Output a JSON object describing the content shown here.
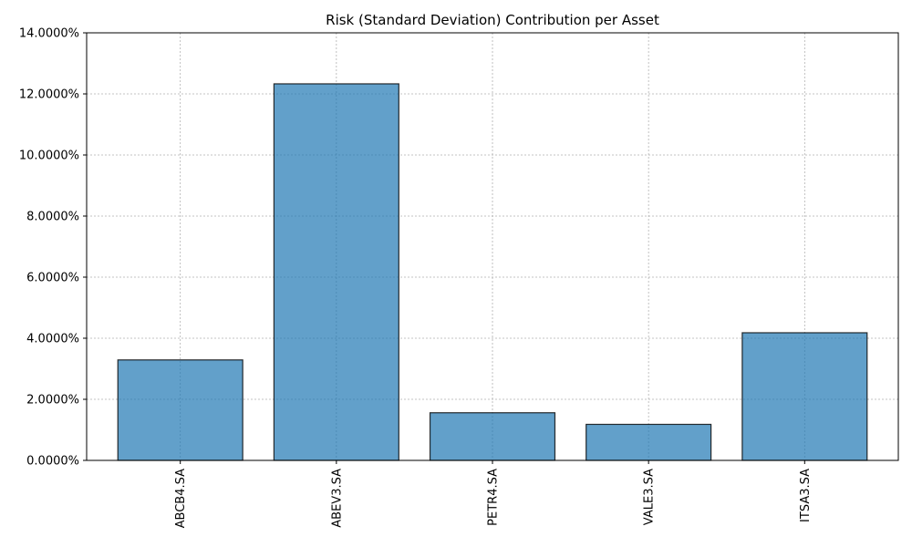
{
  "chart_data": {
    "type": "bar",
    "title": "Risk (Standard Deviation) Contribution per Asset",
    "xlabel": "",
    "ylabel": "",
    "categories": [
      "ABCB4.SA",
      "ABEV3.SA",
      "PETR4.SA",
      "VALE3.SA",
      "ITSA3.SA"
    ],
    "values": [
      3.29,
      12.33,
      1.56,
      1.18,
      4.18
    ],
    "value_unit": "%",
    "ylim": [
      0,
      14
    ],
    "yticks": [
      0,
      2,
      4,
      6,
      8,
      10,
      12,
      14
    ],
    "ytick_labels": [
      "0.0000%",
      "2.0000%",
      "4.0000%",
      "6.0000%",
      "8.0000%",
      "10.0000%",
      "12.0000%",
      "14.0000%"
    ],
    "grid": true,
    "xtick_rotation": "vertical",
    "bar_color": "#1f77b4"
  }
}
